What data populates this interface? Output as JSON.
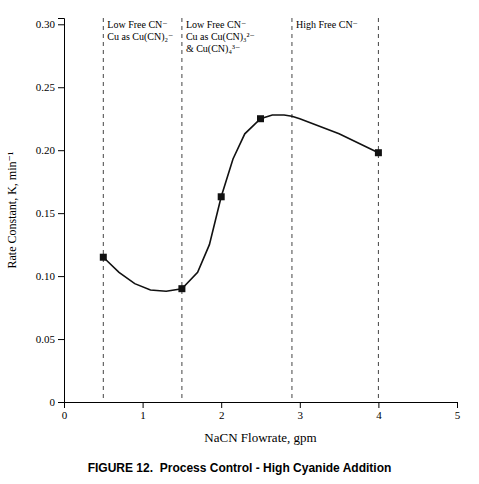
{
  "chart_data": {
    "type": "line",
    "title": "FIGURE 12.  Process Control - High Cyanide Addition",
    "x_label": "NaCN Flowrate, gpm",
    "y_label": "Rate Constant, K, min⁻¹",
    "series": [
      {
        "type": "line",
        "color": "#111111",
        "x": [
          0.5,
          0.7,
          0.9,
          1.1,
          1.3,
          1.5,
          1.7,
          1.85,
          2.0,
          2.15,
          2.3,
          2.5,
          2.65,
          2.8,
          2.9,
          3.0,
          3.5,
          4.0
        ],
        "values": [
          0.115,
          0.103,
          0.094,
          0.089,
          0.088,
          0.09,
          0.103,
          0.125,
          0.163,
          0.193,
          0.213,
          0.225,
          0.228,
          0.228,
          0.227,
          0.225,
          0.213,
          0.198
        ]
      },
      {
        "type": "scatter",
        "color": "#111111",
        "marker": "square",
        "x": [
          0.5,
          1.5,
          2.0,
          2.5,
          4.0
        ],
        "values": [
          0.115,
          0.09,
          0.163,
          0.225,
          0.198
        ]
      }
    ],
    "vertical_lines": {
      "color": "#444444",
      "line_style": "dashed",
      "lines": [
        {
          "x": 0.5,
          "labels": [
            "Low Free CN⁻",
            "Cu as Cu(CN)₂⁻"
          ]
        },
        {
          "x": 1.5,
          "labels": [
            "Low Free CN⁻",
            "Cu as Cu(CN)₃²⁻",
            "& Cu(CN)₄³⁻"
          ]
        },
        {
          "x": 2.9,
          "labels": [
            "High Free CN⁻"
          ]
        },
        {
          "x": 4.0
        }
      ]
    },
    "xlim": [
      0,
      5
    ],
    "ylim": [
      0,
      0.305
    ],
    "xticks": [
      0,
      1,
      2,
      3,
      4,
      5
    ],
    "yticks": [
      0,
      0.05,
      {
        "value": 0.1,
        "label": "0.10"
      },
      0.15,
      {
        "value": 0.2,
        "label": "0.20"
      },
      0.25,
      {
        "value": 0.3,
        "label": "0.30"
      }
    ],
    "grid": false
  }
}
